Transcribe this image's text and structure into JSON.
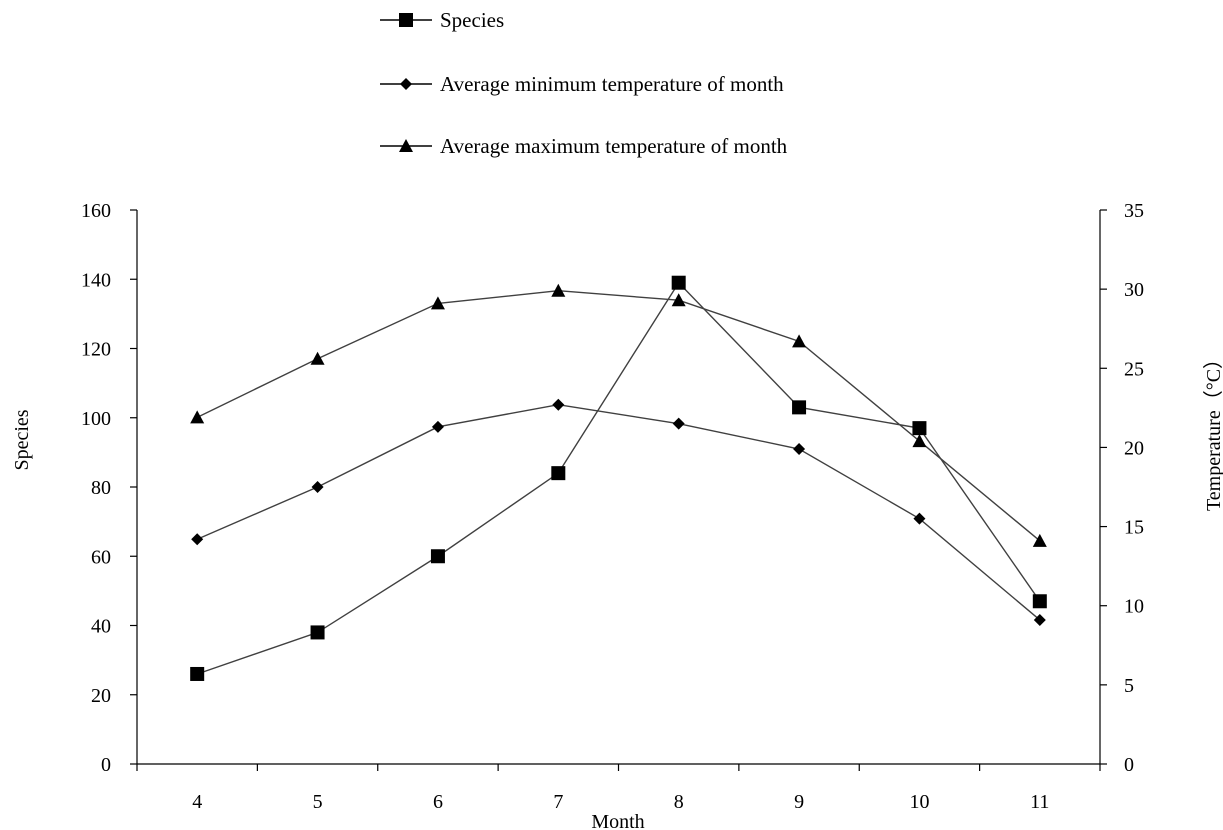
{
  "chart_data": {
    "type": "line",
    "xlabel": "Month",
    "ylabel_left": "Species",
    "ylabel_right": "Temperature（°C）",
    "x": [
      4,
      5,
      6,
      7,
      8,
      9,
      10,
      11
    ],
    "x_ticks": [
      "4",
      "5",
      "6",
      "7",
      "8",
      "9",
      "10",
      "11"
    ],
    "ylim_left": [
      0,
      160
    ],
    "yticks_left": [
      "0",
      "20",
      "40",
      "60",
      "80",
      "100",
      "120",
      "140",
      "160"
    ],
    "ylim_right": [
      0,
      35
    ],
    "yticks_right": [
      "0",
      "5",
      "10",
      "15",
      "20",
      "25",
      "30",
      "35"
    ],
    "grid": false,
    "legend_position": "top-center",
    "series": [
      {
        "name": "Species",
        "axis": "left",
        "marker": "square",
        "values": [
          26,
          38,
          60,
          84,
          139,
          103,
          97,
          47
        ]
      },
      {
        "name": "Average minimum temperature of month",
        "axis": "right",
        "marker": "diamond",
        "values": [
          14.2,
          17.5,
          21.3,
          22.7,
          21.5,
          19.9,
          15.5,
          9.1
        ]
      },
      {
        "name": "Average maximum temperature of month",
        "axis": "right",
        "marker": "triangle",
        "values": [
          21.9,
          25.6,
          29.1,
          29.9,
          29.3,
          26.7,
          20.4,
          14.1
        ]
      }
    ]
  }
}
